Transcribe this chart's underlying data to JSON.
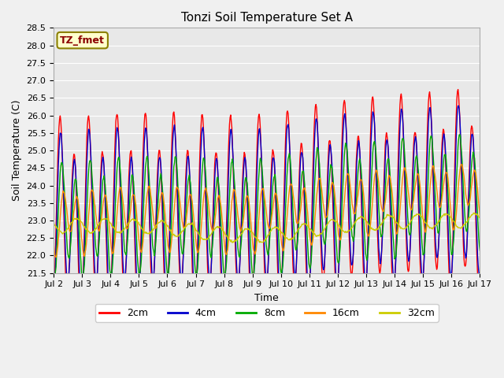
{
  "title": "Tonzi Soil Temperature Set A",
  "xlabel": "Time",
  "ylabel": "Soil Temperature (C)",
  "annotation": "TZ_fmet",
  "ylim": [
    21.5,
    28.5
  ],
  "yticks": [
    21.5,
    22.0,
    22.5,
    23.0,
    23.5,
    24.0,
    24.5,
    25.0,
    25.5,
    26.0,
    26.5,
    27.0,
    27.5,
    28.0,
    28.5
  ],
  "xtick_labels": [
    "Jul 2",
    "Jul 3",
    "Jul 4",
    "Jul 5",
    "Jul 6",
    "Jul 7",
    "Jul 8",
    "Jul 9",
    "Jul 10",
    "Jul 11",
    "Jul 12",
    "Jul 13",
    "Jul 14",
    "Jul 15",
    "Jul 16",
    "Jul 17"
  ],
  "series_colors": {
    "2cm": "#ff0000",
    "4cm": "#0000cc",
    "8cm": "#00aa00",
    "16cm": "#ff8800",
    "32cm": "#cccc00"
  },
  "series_names": [
    "2cm",
    "4cm",
    "8cm",
    "16cm",
    "32cm"
  ],
  "fig_facecolor": "#f0f0f0",
  "ax_facecolor": "#e8e8e8",
  "grid_color": "#ffffff",
  "title_fontsize": 11,
  "axis_fontsize": 9,
  "tick_fontsize": 8,
  "legend_fontsize": 9,
  "n_points": 721,
  "days": 15,
  "start_day": 2
}
